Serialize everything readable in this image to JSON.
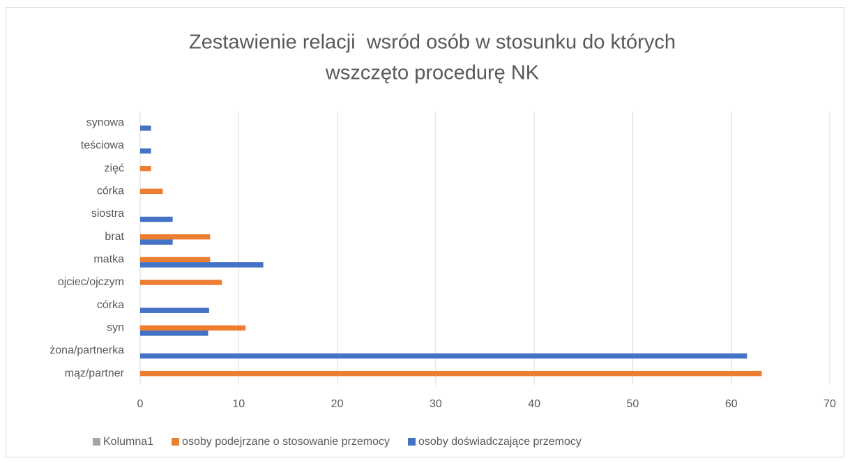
{
  "chart_data": {
    "type": "barh",
    "title": [
      "Zestawienie relacji  wsród osób w stosunku do których",
      "wszczęto procedurę NK"
    ],
    "categories": [
      "mąz/partner",
      "żona/partnerka",
      "syn",
      "córka",
      "ojciec/ojczym",
      "matka",
      "brat",
      "siostra",
      "córka",
      "zięć",
      "teściowa",
      "synowa"
    ],
    "series": [
      {
        "name": "Kolumna1",
        "color": "#a5a5a5",
        "values": [
          null,
          null,
          null,
          null,
          null,
          null,
          null,
          null,
          null,
          null,
          null,
          null
        ]
      },
      {
        "name": "osoby podejrzane o stosowanie przemocy",
        "color": "#ed7d31",
        "values": [
          63.1,
          null,
          10.7,
          null,
          8.3,
          7.1,
          7.1,
          null,
          2.3,
          1.1,
          null,
          null
        ]
      },
      {
        "name": "osoby doświadczające przemocy",
        "color": "#4472c4",
        "values": [
          null,
          61.6,
          6.9,
          7,
          null,
          12.5,
          3.3,
          3.3,
          null,
          null,
          1.1,
          1.1
        ]
      }
    ],
    "xlim": [
      0,
      70
    ],
    "xticks": [
      0,
      10,
      20,
      30,
      40,
      50,
      60,
      70
    ],
    "grid": true,
    "legend": "bottom"
  }
}
